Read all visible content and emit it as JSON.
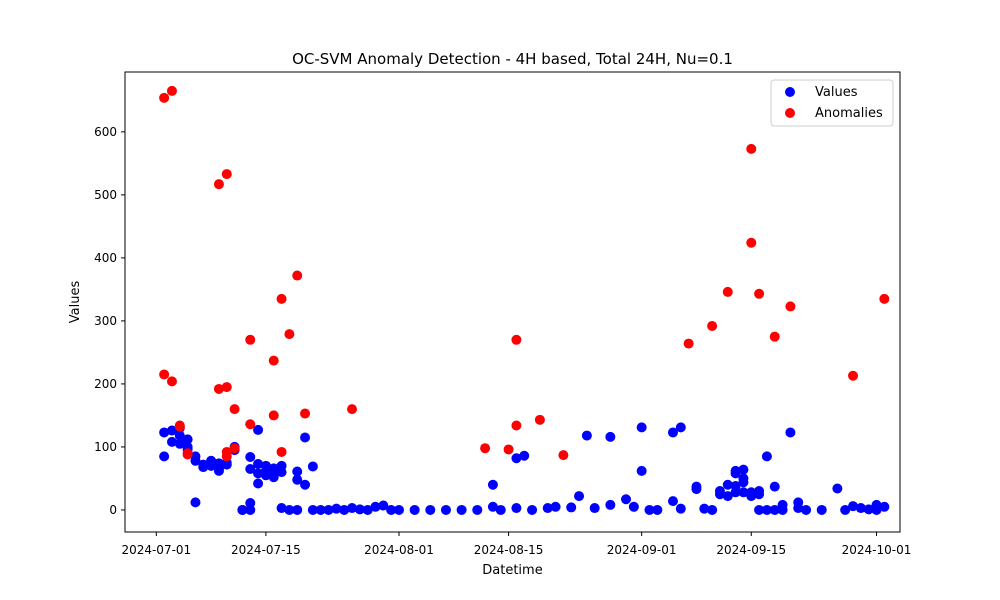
{
  "chart_data": {
    "type": "scatter",
    "title": "OC-SVM Anomaly Detection - 4H based, Total 24H, Nu=0.1",
    "xlabel": "Datetime",
    "ylabel": "Values",
    "x_type": "date",
    "xlim": [
      "2024-06-27",
      "2024-10-04"
    ],
    "ylim": [
      -35,
      695
    ],
    "x_ticks": [
      "2024-07-01",
      "2024-07-15",
      "2024-08-01",
      "2024-08-15",
      "2024-09-01",
      "2024-09-15",
      "2024-10-01"
    ],
    "y_ticks": [
      0,
      100,
      200,
      300,
      400,
      500,
      600
    ],
    "legend": {
      "position": "top-right"
    },
    "grid": false,
    "series": [
      {
        "name": "Values",
        "color": "#0000ff",
        "points": [
          [
            "2024-07-02",
            85
          ],
          [
            "2024-07-02",
            123
          ],
          [
            "2024-07-03",
            108
          ],
          [
            "2024-07-03",
            126
          ],
          [
            "2024-07-04",
            130
          ],
          [
            "2024-07-04",
            118
          ],
          [
            "2024-07-04",
            105
          ],
          [
            "2024-07-05",
            112
          ],
          [
            "2024-07-05",
            100
          ],
          [
            "2024-07-05",
            96
          ],
          [
            "2024-07-06",
            85
          ],
          [
            "2024-07-06",
            78
          ],
          [
            "2024-07-06",
            12
          ],
          [
            "2024-07-07",
            72
          ],
          [
            "2024-07-07",
            68
          ],
          [
            "2024-07-08",
            78
          ],
          [
            "2024-07-08",
            70
          ],
          [
            "2024-07-09",
            74
          ],
          [
            "2024-07-09",
            65
          ],
          [
            "2024-07-09",
            62
          ],
          [
            "2024-07-10",
            72
          ],
          [
            "2024-07-10",
            75
          ],
          [
            "2024-07-11",
            95
          ],
          [
            "2024-07-11",
            100
          ],
          [
            "2024-07-12",
            0
          ],
          [
            "2024-07-12",
            0
          ],
          [
            "2024-07-13",
            11
          ],
          [
            "2024-07-13",
            0
          ],
          [
            "2024-07-13",
            65
          ],
          [
            "2024-07-13",
            84
          ],
          [
            "2024-07-14",
            127
          ],
          [
            "2024-07-14",
            73
          ],
          [
            "2024-07-14",
            58
          ],
          [
            "2024-07-14",
            42
          ],
          [
            "2024-07-15",
            70
          ],
          [
            "2024-07-15",
            62
          ],
          [
            "2024-07-15",
            55
          ],
          [
            "2024-07-16",
            66
          ],
          [
            "2024-07-16",
            55
          ],
          [
            "2024-07-16",
            52
          ],
          [
            "2024-07-17",
            60
          ],
          [
            "2024-07-17",
            70
          ],
          [
            "2024-07-17",
            3
          ],
          [
            "2024-07-18",
            0
          ],
          [
            "2024-07-19",
            0
          ],
          [
            "2024-07-19",
            48
          ],
          [
            "2024-07-19",
            61
          ],
          [
            "2024-07-20",
            115
          ],
          [
            "2024-07-20",
            40
          ],
          [
            "2024-07-21",
            69
          ],
          [
            "2024-07-21",
            0
          ],
          [
            "2024-07-22",
            0
          ],
          [
            "2024-07-23",
            0
          ],
          [
            "2024-07-24",
            2
          ],
          [
            "2024-07-25",
            0
          ],
          [
            "2024-07-26",
            3
          ],
          [
            "2024-07-27",
            1
          ],
          [
            "2024-07-28",
            0
          ],
          [
            "2024-07-29",
            5
          ],
          [
            "2024-07-30",
            7
          ],
          [
            "2024-07-31",
            0
          ],
          [
            "2024-08-01",
            0
          ],
          [
            "2024-08-03",
            0
          ],
          [
            "2024-08-05",
            0
          ],
          [
            "2024-08-07",
            0
          ],
          [
            "2024-08-09",
            0
          ],
          [
            "2024-08-11",
            0
          ],
          [
            "2024-08-13",
            40
          ],
          [
            "2024-08-13",
            5
          ],
          [
            "2024-08-14",
            0
          ],
          [
            "2024-08-16",
            82
          ],
          [
            "2024-08-16",
            3
          ],
          [
            "2024-08-17",
            86
          ],
          [
            "2024-08-18",
            0
          ],
          [
            "2024-08-20",
            3
          ],
          [
            "2024-08-21",
            5
          ],
          [
            "2024-08-23",
            4
          ],
          [
            "2024-08-24",
            22
          ],
          [
            "2024-08-25",
            118
          ],
          [
            "2024-08-26",
            3
          ],
          [
            "2024-08-28",
            8
          ],
          [
            "2024-08-28",
            116
          ],
          [
            "2024-08-30",
            17
          ],
          [
            "2024-08-31",
            5
          ],
          [
            "2024-09-01",
            62
          ],
          [
            "2024-09-01",
            131
          ],
          [
            "2024-09-02",
            0
          ],
          [
            "2024-09-03",
            0
          ],
          [
            "2024-09-05",
            14
          ],
          [
            "2024-09-05",
            123
          ],
          [
            "2024-09-06",
            131
          ],
          [
            "2024-09-06",
            2
          ],
          [
            "2024-09-08",
            33
          ],
          [
            "2024-09-08",
            37
          ],
          [
            "2024-09-09",
            2
          ],
          [
            "2024-09-10",
            0
          ],
          [
            "2024-09-11",
            25
          ],
          [
            "2024-09-11",
            30
          ],
          [
            "2024-09-12",
            40
          ],
          [
            "2024-09-12",
            22
          ],
          [
            "2024-09-13",
            38
          ],
          [
            "2024-09-13",
            28
          ],
          [
            "2024-09-13",
            58
          ],
          [
            "2024-09-13",
            62
          ],
          [
            "2024-09-14",
            64
          ],
          [
            "2024-09-14",
            50
          ],
          [
            "2024-09-14",
            28
          ],
          [
            "2024-09-14",
            44
          ],
          [
            "2024-09-15",
            22
          ],
          [
            "2024-09-15",
            28
          ],
          [
            "2024-09-16",
            30
          ],
          [
            "2024-09-16",
            25
          ],
          [
            "2024-09-16",
            0
          ],
          [
            "2024-09-17",
            0
          ],
          [
            "2024-09-17",
            85
          ],
          [
            "2024-09-18",
            0
          ],
          [
            "2024-09-18",
            37
          ],
          [
            "2024-09-19",
            8
          ],
          [
            "2024-09-19",
            0
          ],
          [
            "2024-09-20",
            123
          ],
          [
            "2024-09-21",
            3
          ],
          [
            "2024-09-21",
            12
          ],
          [
            "2024-09-22",
            0
          ],
          [
            "2024-09-24",
            0
          ],
          [
            "2024-09-26",
            34
          ],
          [
            "2024-09-27",
            0
          ],
          [
            "2024-09-28",
            6
          ],
          [
            "2024-09-29",
            3
          ],
          [
            "2024-09-30",
            1
          ],
          [
            "2024-10-01",
            8
          ],
          [
            "2024-10-01",
            0
          ],
          [
            "2024-10-02",
            5
          ]
        ]
      },
      {
        "name": "Anomalies",
        "color": "#ff0000",
        "points": [
          [
            "2024-07-02",
            654
          ],
          [
            "2024-07-02",
            215
          ],
          [
            "2024-07-03",
            204
          ],
          [
            "2024-07-03",
            665
          ],
          [
            "2024-07-04",
            132
          ],
          [
            "2024-07-04",
            134
          ],
          [
            "2024-07-05",
            90
          ],
          [
            "2024-07-05",
            88
          ],
          [
            "2024-07-09",
            517
          ],
          [
            "2024-07-09",
            192
          ],
          [
            "2024-07-10",
            195
          ],
          [
            "2024-07-10",
            533
          ],
          [
            "2024-07-10",
            85
          ],
          [
            "2024-07-10",
            92
          ],
          [
            "2024-07-11",
            98
          ],
          [
            "2024-07-11",
            160
          ],
          [
            "2024-07-13",
            270
          ],
          [
            "2024-07-13",
            136
          ],
          [
            "2024-07-16",
            237
          ],
          [
            "2024-07-16",
            150
          ],
          [
            "2024-07-17",
            335
          ],
          [
            "2024-07-17",
            92
          ],
          [
            "2024-07-18",
            279
          ],
          [
            "2024-07-19",
            372
          ],
          [
            "2024-07-20",
            153
          ],
          [
            "2024-07-26",
            160
          ],
          [
            "2024-08-12",
            98
          ],
          [
            "2024-08-15",
            96
          ],
          [
            "2024-08-16",
            270
          ],
          [
            "2024-08-16",
            134
          ],
          [
            "2024-08-19",
            143
          ],
          [
            "2024-08-22",
            87
          ],
          [
            "2024-09-07",
            264
          ],
          [
            "2024-09-10",
            292
          ],
          [
            "2024-09-12",
            346
          ],
          [
            "2024-09-15",
            573
          ],
          [
            "2024-09-15",
            424
          ],
          [
            "2024-09-16",
            343
          ],
          [
            "2024-09-18",
            275
          ],
          [
            "2024-09-20",
            323
          ],
          [
            "2024-09-28",
            213
          ],
          [
            "2024-10-02",
            335
          ]
        ]
      }
    ]
  }
}
